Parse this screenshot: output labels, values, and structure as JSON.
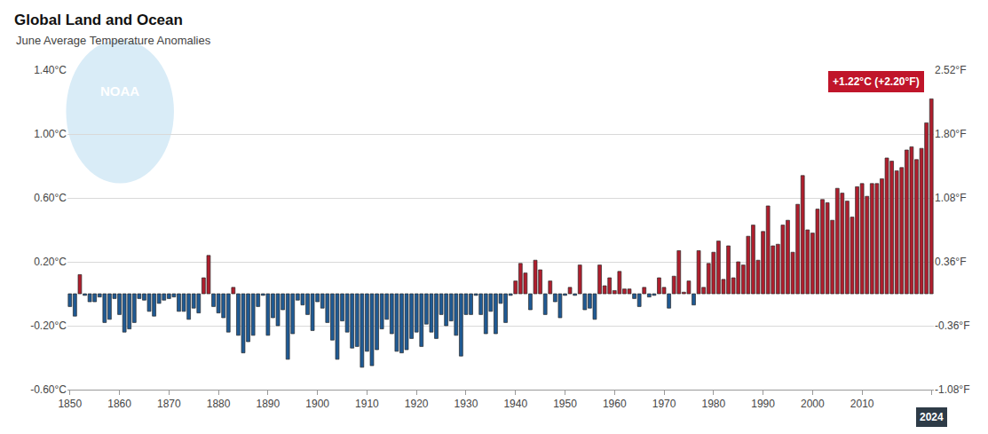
{
  "chart_data": {
    "type": "bar",
    "title": "Global Land and Ocean",
    "subtitle": "June Average Temperature Anomalies",
    "annotations": [
      "+1.22°C (+2.20°F)",
      "NOAA"
    ],
    "x": [
      1850,
      1851,
      1852,
      1853,
      1854,
      1855,
      1856,
      1857,
      1858,
      1859,
      1860,
      1861,
      1862,
      1863,
      1864,
      1865,
      1866,
      1867,
      1868,
      1869,
      1870,
      1871,
      1872,
      1873,
      1874,
      1875,
      1876,
      1877,
      1878,
      1879,
      1880,
      1881,
      1882,
      1883,
      1884,
      1885,
      1886,
      1887,
      1888,
      1889,
      1890,
      1891,
      1892,
      1893,
      1894,
      1895,
      1896,
      1897,
      1898,
      1899,
      1900,
      1901,
      1902,
      1903,
      1904,
      1905,
      1906,
      1907,
      1908,
      1909,
      1910,
      1911,
      1912,
      1913,
      1914,
      1915,
      1916,
      1917,
      1918,
      1919,
      1920,
      1921,
      1922,
      1923,
      1924,
      1925,
      1926,
      1927,
      1928,
      1929,
      1930,
      1931,
      1932,
      1933,
      1934,
      1935,
      1936,
      1937,
      1938,
      1939,
      1940,
      1941,
      1942,
      1943,
      1944,
      1945,
      1946,
      1947,
      1948,
      1949,
      1950,
      1951,
      1952,
      1953,
      1954,
      1955,
      1956,
      1957,
      1958,
      1959,
      1960,
      1961,
      1962,
      1963,
      1964,
      1965,
      1966,
      1967,
      1968,
      1969,
      1970,
      1971,
      1972,
      1973,
      1974,
      1975,
      1976,
      1977,
      1978,
      1979,
      1980,
      1981,
      1982,
      1983,
      1984,
      1985,
      1986,
      1987,
      1988,
      1989,
      1990,
      1991,
      1992,
      1993,
      1994,
      1995,
      1996,
      1997,
      1998,
      1999,
      2000,
      2001,
      2002,
      2003,
      2004,
      2005,
      2006,
      2007,
      2008,
      2009,
      2010,
      2011,
      2012,
      2013,
      2014,
      2015,
      2016,
      2017,
      2018,
      2019,
      2020,
      2021,
      2022,
      2023,
      2024
    ],
    "values": [
      -0.08,
      -0.14,
      0.12,
      -0.01,
      -0.05,
      -0.05,
      -0.02,
      -0.18,
      -0.16,
      -0.03,
      -0.13,
      -0.24,
      -0.22,
      -0.18,
      -0.03,
      -0.04,
      -0.11,
      -0.14,
      -0.06,
      -0.04,
      -0.03,
      -0.02,
      -0.11,
      -0.11,
      -0.16,
      -0.09,
      -0.12,
      0.1,
      0.24,
      -0.08,
      -0.12,
      -0.15,
      -0.24,
      0.04,
      -0.26,
      -0.37,
      -0.3,
      -0.26,
      -0.08,
      -0.01,
      -0.26,
      -0.15,
      -0.2,
      -0.1,
      -0.41,
      -0.25,
      -0.04,
      -0.07,
      -0.13,
      -0.23,
      -0.05,
      -0.09,
      -0.18,
      -0.29,
      -0.41,
      -0.17,
      -0.24,
      -0.34,
      -0.33,
      -0.46,
      -0.36,
      -0.45,
      -0.35,
      -0.22,
      -0.16,
      -0.25,
      -0.36,
      -0.37,
      -0.35,
      -0.28,
      -0.24,
      -0.33,
      -0.19,
      -0.24,
      -0.28,
      -0.13,
      -0.2,
      -0.17,
      -0.26,
      -0.39,
      -0.13,
      -0.13,
      -0.01,
      -0.13,
      -0.25,
      -0.11,
      -0.25,
      -0.06,
      -0.18,
      -0.01,
      0.08,
      0.19,
      0.13,
      -0.1,
      0.21,
      0.15,
      -0.13,
      0.08,
      -0.05,
      -0.15,
      -0.01,
      0.04,
      -0.01,
      0.18,
      -0.1,
      -0.09,
      -0.16,
      0.18,
      0.05,
      0.1,
      0.02,
      0.14,
      0.03,
      0.03,
      -0.03,
      -0.08,
      0.04,
      -0.02,
      -0.01,
      0.1,
      0.04,
      -0.09,
      0.11,
      0.27,
      0.01,
      0.08,
      -0.07,
      0.27,
      0.04,
      0.19,
      0.26,
      0.33,
      0.09,
      0.3,
      0.1,
      0.2,
      0.18,
      0.36,
      0.43,
      0.21,
      0.39,
      0.55,
      0.3,
      0.31,
      0.43,
      0.46,
      0.26,
      0.56,
      0.74,
      0.4,
      0.38,
      0.53,
      0.59,
      0.57,
      0.46,
      0.66,
      0.63,
      0.58,
      0.48,
      0.67,
      0.69,
      0.61,
      0.69,
      0.69,
      0.72,
      0.85,
      0.83,
      0.77,
      0.79,
      0.9,
      0.92,
      0.84,
      0.91,
      1.07,
      1.22
    ],
    "colors": [
      "#1f5a94",
      "#1f5a94",
      "#b01e2d",
      "#1f5a94",
      "#1f5a94",
      "#1f5a94",
      "#1f5a94",
      "#1f5a94",
      "#1f5a94",
      "#1f5a94",
      "#1f5a94",
      "#1f5a94",
      "#1f5a94",
      "#1f5a94",
      "#1f5a94",
      "#1f5a94",
      "#1f5a94",
      "#1f5a94",
      "#1f5a94",
      "#1f5a94",
      "#1f5a94",
      "#1f5a94",
      "#1f5a94",
      "#1f5a94",
      "#1f5a94",
      "#1f5a94",
      "#1f5a94",
      "#b01e2d",
      "#b01e2d",
      "#1f5a94",
      "#1f5a94",
      "#1f5a94",
      "#1f5a94",
      "#b01e2d",
      "#1f5a94",
      "#1f5a94",
      "#1f5a94",
      "#1f5a94",
      "#1f5a94",
      "#1f5a94",
      "#1f5a94",
      "#1f5a94",
      "#1f5a94",
      "#1f5a94",
      "#1f5a94",
      "#1f5a94",
      "#1f5a94",
      "#1f5a94",
      "#1f5a94",
      "#1f5a94",
      "#1f5a94",
      "#1f5a94",
      "#1f5a94",
      "#1f5a94",
      "#1f5a94",
      "#1f5a94",
      "#1f5a94",
      "#1f5a94",
      "#1f5a94",
      "#1f5a94",
      "#1f5a94",
      "#1f5a94",
      "#1f5a94",
      "#1f5a94",
      "#1f5a94",
      "#1f5a94",
      "#1f5a94",
      "#1f5a94",
      "#1f5a94",
      "#1f5a94",
      "#1f5a94",
      "#1f5a94",
      "#1f5a94",
      "#1f5a94",
      "#1f5a94",
      "#1f5a94",
      "#1f5a94",
      "#1f5a94",
      "#1f5a94",
      "#1f5a94",
      "#1f5a94",
      "#1f5a94",
      "#1f5a94",
      "#1f5a94",
      "#1f5a94",
      "#1f5a94",
      "#1f5a94",
      "#1f5a94",
      "#1f5a94",
      "#1f5a94",
      "#b01e2d",
      "#b01e2d",
      "#b01e2d",
      "#1f5a94",
      "#b01e2d",
      "#b01e2d",
      "#1f5a94",
      "#b01e2d",
      "#1f5a94",
      "#1f5a94",
      "#1f5a94",
      "#b01e2d",
      "#1f5a94",
      "#b01e2d",
      "#1f5a94",
      "#1f5a94",
      "#1f5a94",
      "#b01e2d",
      "#b01e2d",
      "#b01e2d",
      "#b01e2d",
      "#b01e2d",
      "#b01e2d",
      "#b01e2d",
      "#1f5a94",
      "#1f5a94",
      "#b01e2d",
      "#1f5a94",
      "#1f5a94",
      "#b01e2d",
      "#b01e2d",
      "#1f5a94",
      "#b01e2d",
      "#b01e2d",
      "#b01e2d",
      "#b01e2d",
      "#1f5a94",
      "#b01e2d",
      "#b01e2d",
      "#b01e2d",
      "#b01e2d",
      "#b01e2d",
      "#b01e2d",
      "#b01e2d",
      "#b01e2d",
      "#b01e2d",
      "#b01e2d",
      "#b01e2d",
      "#b01e2d",
      "#b01e2d",
      "#b01e2d",
      "#b01e2d",
      "#b01e2d",
      "#b01e2d",
      "#b01e2d",
      "#b01e2d",
      "#b01e2d",
      "#b01e2d",
      "#b01e2d",
      "#b01e2d",
      "#b01e2d",
      "#b01e2d",
      "#b01e2d",
      "#b01e2d",
      "#b01e2d",
      "#b01e2d",
      "#b01e2d",
      "#b01e2d",
      "#b01e2d",
      "#b01e2d",
      "#b01e2d",
      "#b01e2d",
      "#b01e2d",
      "#b01e2d",
      "#b01e2d",
      "#b01e2d",
      "#b01e2d",
      "#b01e2d",
      "#b01e2d",
      "#b01e2d",
      "#b01e2d",
      "#b01e2d",
      "#b01e2d",
      "#b01e2d",
      "#b01e2d"
    ],
    "xlim": [
      1849.5,
      2024.5
    ],
    "xticks": [
      1850,
      1860,
      1870,
      1880,
      1890,
      1900,
      1910,
      1920,
      1930,
      1940,
      1950,
      1960,
      1970,
      1980,
      1990,
      2000,
      2010,
      2024
    ],
    "ylim": [
      -0.6,
      1.4
    ],
    "yticks": [
      {
        "value": -0.6,
        "label": "-0.60°C"
      },
      {
        "value": -0.2,
        "label": "-0.20°C"
      },
      {
        "value": 0.2,
        "label": "0.20°C"
      },
      {
        "value": 0.6,
        "label": "0.60°C"
      },
      {
        "value": 1.0,
        "label": "1.00°C"
      },
      {
        "value": 1.4,
        "label": "1.40°C"
      }
    ],
    "y2lim": [
      -1.08,
      2.52
    ],
    "y2ticks": [
      {
        "value": -1.08,
        "label": "-1.08°F"
      },
      {
        "value": -0.36,
        "label": "-0.36°F"
      },
      {
        "value": 0.36,
        "label": "0.36°F"
      },
      {
        "value": 1.08,
        "label": "1.08°F"
      },
      {
        "value": 1.8,
        "label": "1.80°F"
      },
      {
        "value": 2.52,
        "label": "2.52°F"
      }
    ],
    "grid": true
  }
}
